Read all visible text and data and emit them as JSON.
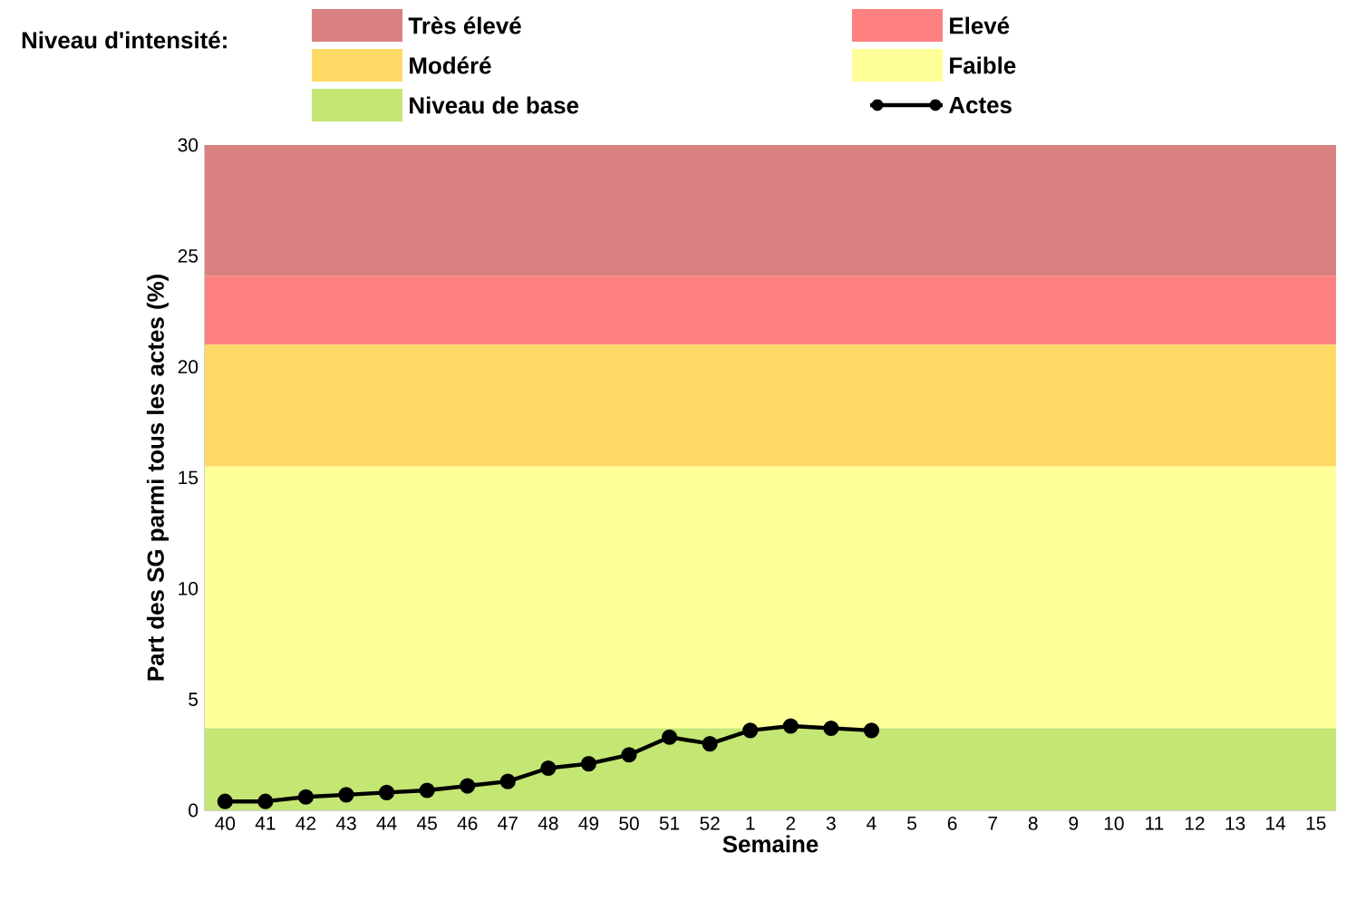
{
  "chart_data": {
    "type": "line",
    "xlabel": "Semaine",
    "ylabel": "Part des SG parmi tous les actes (%)",
    "legend_title": "Niveau d'intensité:",
    "categories": [
      "40",
      "41",
      "42",
      "43",
      "44",
      "45",
      "46",
      "47",
      "48",
      "49",
      "50",
      "51",
      "52",
      "1",
      "2",
      "3",
      "4",
      "5",
      "6",
      "7",
      "8",
      "9",
      "10",
      "11",
      "12",
      "13",
      "14",
      "15"
    ],
    "series": [
      {
        "name": "Actes",
        "color": "#000000",
        "values": [
          0.4,
          0.4,
          0.6,
          0.7,
          0.8,
          0.9,
          1.1,
          1.3,
          1.9,
          2.1,
          2.5,
          3.3,
          3.0,
          3.6,
          3.8,
          3.7,
          3.6,
          null,
          null,
          null,
          null,
          null,
          null,
          null,
          null,
          null,
          null,
          null
        ]
      }
    ],
    "bands": [
      {
        "axis": "y",
        "from": 24.1,
        "to": 30,
        "label": "Très élevé",
        "color": "#d98080"
      },
      {
        "axis": "y",
        "from": 21,
        "to": 24.1,
        "label": "Elevé",
        "color": "#ff8080"
      },
      {
        "axis": "y",
        "from": 15.5,
        "to": 21,
        "label": "Modéré",
        "color": "#ffd966"
      },
      {
        "axis": "y",
        "from": 3.7,
        "to": 15.5,
        "label": "Faible",
        "color": "#ffff99"
      },
      {
        "axis": "y",
        "from": 0,
        "to": 3.7,
        "label": "Niveau de base",
        "color": "#c4e673"
      }
    ],
    "ylim": [
      0,
      30
    ],
    "yticks": [
      0,
      5,
      10,
      15,
      20,
      25,
      30
    ],
    "grid": false,
    "legend": "top",
    "marker": "circle",
    "line_style": "solid"
  }
}
